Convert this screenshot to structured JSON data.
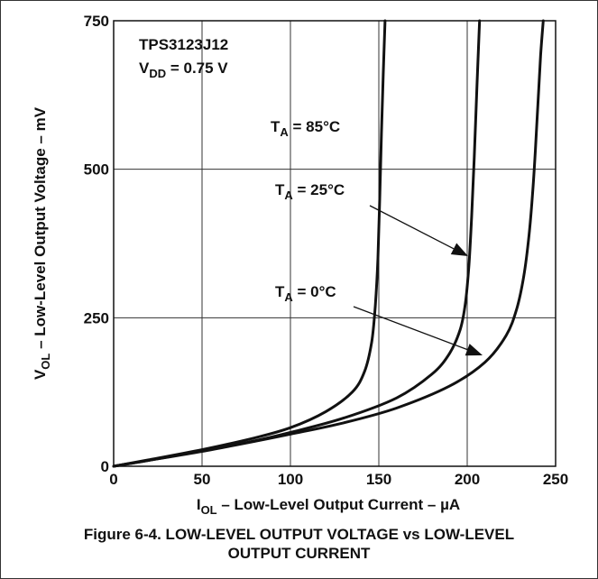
{
  "chart_data": {
    "type": "line",
    "xlabel": "I_OL – Low-Level Output Current – µA",
    "ylabel": "V_OL – Low-Level Output Voltage – mV",
    "xlim": [
      0,
      250
    ],
    "ylim": [
      0,
      750
    ],
    "x_ticks": [
      "0",
      "50",
      "100",
      "150",
      "200",
      "250"
    ],
    "y_ticks": [
      "0",
      "250",
      "500",
      "750"
    ],
    "grid": true,
    "device_label": "TPS3123J12",
    "supply_label": "V_DD = 0.75 V",
    "series": [
      {
        "name": "T_A = 85°C",
        "x": [
          0,
          20,
          50,
          80,
          100,
          120,
          135,
          142,
          146,
          148,
          149.5,
          150.5,
          151.5,
          152.5,
          153.5
        ],
        "y": [
          0,
          11,
          28,
          48,
          65,
          92,
          125,
          160,
          210,
          270,
          350,
          450,
          560,
          660,
          750
        ]
      },
      {
        "name": "T_A = 25°C",
        "x": [
          0,
          20,
          50,
          80,
          100,
          130,
          160,
          180,
          190,
          196,
          199,
          201,
          202.5,
          204,
          205.5,
          207
        ],
        "y": [
          0,
          10,
          26,
          43,
          57,
          81,
          115,
          155,
          190,
          230,
          275,
          340,
          420,
          520,
          640,
          750
        ]
      },
      {
        "name": "T_A = 0°C",
        "x": [
          0,
          20,
          50,
          80,
          100,
          130,
          160,
          190,
          210,
          222,
          228,
          232,
          235,
          237,
          238.5,
          240,
          241.5,
          243
        ],
        "y": [
          0,
          10,
          25,
          42,
          54,
          73,
          98,
          135,
          175,
          220,
          265,
          320,
          390,
          460,
          530,
          610,
          690,
          750
        ]
      }
    ],
    "annotations": [
      {
        "base": "T",
        "sub": "A",
        "rest": " = 85°C"
      },
      {
        "base": "T",
        "sub": "A",
        "rest": " = 25°C"
      },
      {
        "base": "T",
        "sub": "A",
        "rest": " = 0°C"
      }
    ]
  },
  "labels": {
    "device": "TPS3123J12",
    "vdd_base": "V",
    "vdd_sub": "DD",
    "vdd_rest": " = 0.75 V",
    "xlabel_base": "I",
    "xlabel_sub": "OL",
    "xlabel_rest": " – Low-Level Output Current – µA",
    "ylabel_base": "V",
    "ylabel_sub": "OL",
    "ylabel_rest": " – Low-Level Output Voltage – mV"
  },
  "caption": {
    "line1": "Figure 6-4. LOW-LEVEL OUTPUT VOLTAGE vs LOW-LEVEL",
    "line2": "OUTPUT CURRENT"
  }
}
